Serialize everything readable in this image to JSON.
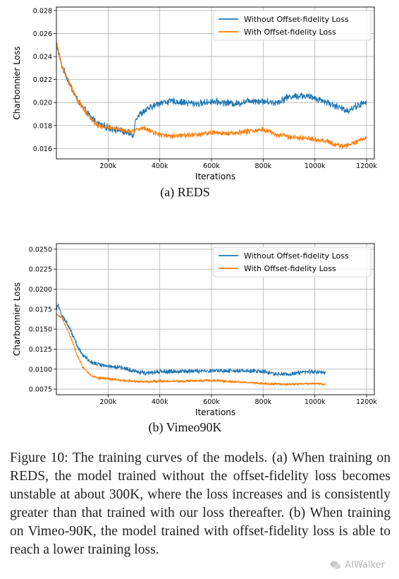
{
  "chart_data": [
    {
      "type": "line",
      "subcaption": "(a) REDS",
      "xlabel": "Iterations",
      "ylabel": "Charbonnier Loss",
      "xlim": [
        0,
        1230000
      ],
      "ylim": [
        0.0151,
        0.0283
      ],
      "xticks": [
        200000,
        400000,
        600000,
        800000,
        1000000,
        1200000
      ],
      "xtick_labels": [
        "200k",
        "400k",
        "600k",
        "800k",
        "1000k",
        "1200k"
      ],
      "yticks": [
        0.016,
        0.018,
        0.02,
        0.022,
        0.024,
        0.026,
        0.028
      ],
      "ytick_labels": [
        "0.016",
        "0.018",
        "0.020",
        "0.022",
        "0.024",
        "0.026",
        "0.028"
      ],
      "grid": true,
      "legend_position": "top-right",
      "series": [
        {
          "name": "Without Offset-fidelity Loss",
          "color": "#1f77b4",
          "noise": 0.00025,
          "x": [
            0,
            20000,
            40000,
            60000,
            80000,
            100000,
            130000,
            160000,
            200000,
            240000,
            280000,
            300000,
            305000,
            330000,
            360000,
            400000,
            450000,
            500000,
            550000,
            600000,
            650000,
            700000,
            750000,
            800000,
            850000,
            900000,
            950000,
            1000000,
            1050000,
            1100000,
            1130000,
            1160000,
            1200000
          ],
          "y": [
            0.0252,
            0.0232,
            0.0222,
            0.0212,
            0.0203,
            0.0196,
            0.0188,
            0.0182,
            0.0178,
            0.0176,
            0.0173,
            0.0172,
            0.0186,
            0.0191,
            0.0195,
            0.02,
            0.0201,
            0.02,
            0.0199,
            0.0201,
            0.02,
            0.0199,
            0.0202,
            0.0201,
            0.02,
            0.0205,
            0.0206,
            0.0204,
            0.02,
            0.0195,
            0.0193,
            0.0197,
            0.02
          ]
        },
        {
          "name": "With Offset-fidelity Loss",
          "color": "#ff7f0e",
          "noise": 0.00018,
          "x": [
            0,
            20000,
            40000,
            60000,
            80000,
            100000,
            130000,
            160000,
            200000,
            240000,
            280000,
            300000,
            330000,
            360000,
            400000,
            450000,
            500000,
            550000,
            600000,
            650000,
            700000,
            750000,
            800000,
            850000,
            900000,
            950000,
            1000000,
            1050000,
            1100000,
            1130000,
            1160000,
            1200000
          ],
          "y": [
            0.0252,
            0.0232,
            0.0222,
            0.0212,
            0.0203,
            0.0196,
            0.0187,
            0.018,
            0.0178,
            0.0177,
            0.0175,
            0.0175,
            0.0178,
            0.0176,
            0.0172,
            0.0171,
            0.0172,
            0.0172,
            0.0174,
            0.0173,
            0.0174,
            0.0175,
            0.0177,
            0.0172,
            0.017,
            0.0169,
            0.0168,
            0.0166,
            0.0162,
            0.0163,
            0.0166,
            0.017
          ]
        }
      ]
    },
    {
      "type": "line",
      "subcaption": "(b) Vimeo90K",
      "xlabel": "Iterations",
      "ylabel": "Charbonnier Loss",
      "xlim": [
        0,
        1230000
      ],
      "ylim": [
        0.0068,
        0.0257
      ],
      "xticks": [
        200000,
        400000,
        600000,
        800000,
        1000000,
        1200000
      ],
      "xtick_labels": [
        "200k",
        "400k",
        "600k",
        "800k",
        "1000k",
        "1200k"
      ],
      "yticks": [
        0.0075,
        0.01,
        0.0125,
        0.015,
        0.0175,
        0.02,
        0.0225,
        0.025
      ],
      "ytick_labels": [
        "0.0075",
        "0.0100",
        "0.0125",
        "0.0150",
        "0.0175",
        "0.0200",
        "0.0225",
        "0.0250"
      ],
      "grid": true,
      "legend_position": "top-right",
      "series": [
        {
          "name": "Without Offset-fidelity Loss",
          "color": "#1f77b4",
          "noise": 0.00022,
          "x": [
            0,
            5000,
            20000,
            40000,
            60000,
            80000,
            100000,
            130000,
            160000,
            200000,
            250000,
            300000,
            350000,
            400000,
            500000,
            600000,
            700000,
            800000,
            850000,
            900000,
            950000,
            1000000,
            1040000
          ],
          "y": [
            0.0175,
            0.0182,
            0.0168,
            0.0158,
            0.0145,
            0.013,
            0.0118,
            0.011,
            0.0106,
            0.0104,
            0.0102,
            0.0098,
            0.0095,
            0.0097,
            0.0097,
            0.0098,
            0.0098,
            0.0097,
            0.0094,
            0.0094,
            0.0096,
            0.0097,
            0.0096
          ]
        },
        {
          "name": "With Offset-fidelity Loss",
          "color": "#ff7f0e",
          "noise": 0.00014,
          "x": [
            0,
            20000,
            40000,
            60000,
            80000,
            100000,
            130000,
            160000,
            200000,
            250000,
            300000,
            350000,
            400000,
            500000,
            600000,
            700000,
            800000,
            900000,
            1000000,
            1040000
          ],
          "y": [
            0.0168,
            0.0164,
            0.0152,
            0.0136,
            0.0118,
            0.0104,
            0.0093,
            0.0089,
            0.0088,
            0.0086,
            0.0085,
            0.0084,
            0.0085,
            0.0085,
            0.0086,
            0.0084,
            0.0082,
            0.0081,
            0.0082,
            0.0081
          ]
        }
      ]
    }
  ],
  "caption": "Figure 10: The training curves of the models. (a) When train­ing on REDS, the model trained without the offset-fidelity loss becomes unstable at about 300K, where the loss in­creases and is consistently greater than that trained with our loss thereafter. (b) When training on Vimeo-90K, the model trained with offset-fidelity loss is able to reach a lower train­ing loss.",
  "watermark": "AIWalker"
}
